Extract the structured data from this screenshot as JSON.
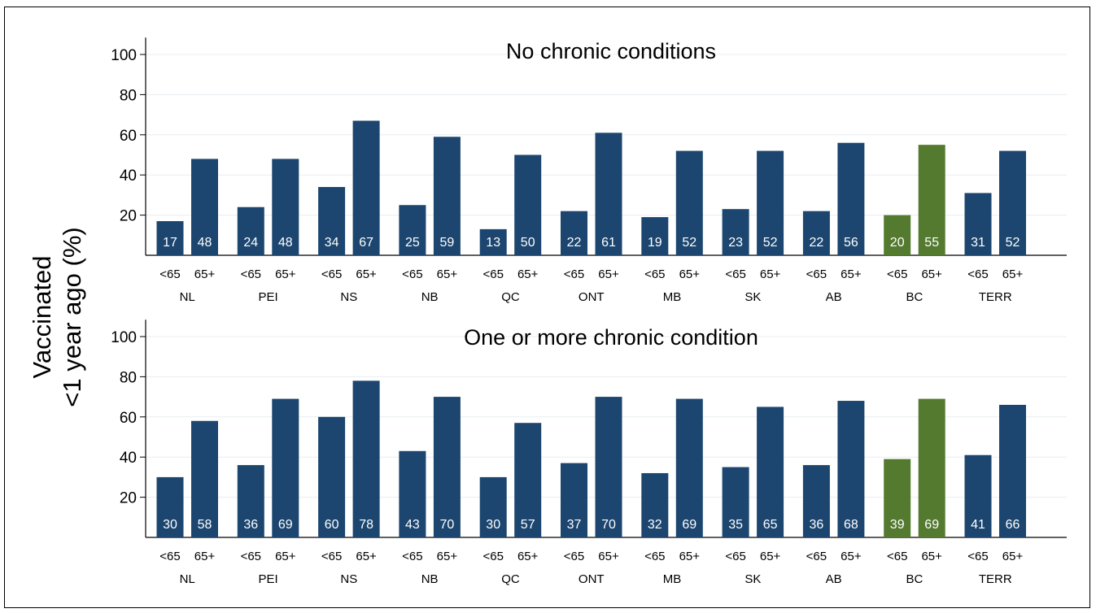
{
  "figure": {
    "ylabel_line1": "Vaccinated",
    "ylabel_line2": "<1 year ago (%)"
  },
  "colors": {
    "default_bar": "#1c466f",
    "highlight_bar": "#547a30",
    "bar_label": "#ffffff",
    "grid": "#e8edf1",
    "axis": "#000000"
  },
  "chart_data": [
    {
      "type": "bar",
      "title": "No chronic conditions",
      "provinces": [
        "NL",
        "PEI",
        "NS",
        "NB",
        "QC",
        "ONT",
        "MB",
        "SK",
        "AB",
        "BC",
        "TERR"
      ],
      "age_groups": [
        "<65",
        "65+"
      ],
      "series": [
        {
          "values": [
            17,
            24,
            34,
            25,
            13,
            22,
            19,
            23,
            22,
            20,
            31
          ]
        },
        {
          "values": [
            48,
            48,
            67,
            59,
            50,
            61,
            52,
            52,
            56,
            55,
            52
          ]
        }
      ],
      "highlight_province": "BC",
      "yticks": [
        20,
        40,
        60,
        80,
        100
      ],
      "ylim": [
        0,
        110
      ],
      "grid": true
    },
    {
      "type": "bar",
      "title": "One or more chronic condition",
      "provinces": [
        "NL",
        "PEI",
        "NS",
        "NB",
        "QC",
        "ONT",
        "MB",
        "SK",
        "AB",
        "BC",
        "TERR"
      ],
      "age_groups": [
        "<65",
        "65+"
      ],
      "series": [
        {
          "values": [
            30,
            36,
            60,
            43,
            30,
            37,
            32,
            35,
            36,
            39,
            41
          ]
        },
        {
          "values": [
            58,
            69,
            78,
            70,
            57,
            70,
            69,
            65,
            68,
            69,
            66
          ]
        }
      ],
      "highlight_province": "BC",
      "yticks": [
        20,
        40,
        60,
        80,
        100
      ],
      "ylim": [
        0,
        110
      ],
      "grid": true
    }
  ]
}
